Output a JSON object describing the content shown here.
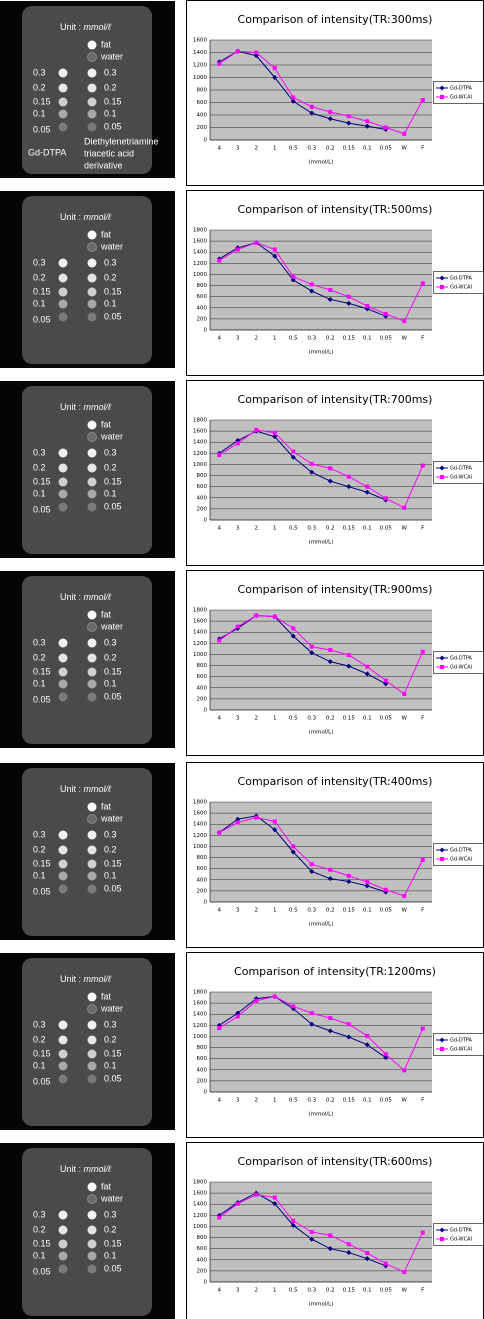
{
  "phantom": {
    "unit_label": "Unit :",
    "unit": "mmol/ℓ",
    "fat": "fat",
    "water": "water",
    "left": [
      "0.3",
      "0.2",
      "0.15",
      "0.1",
      "0.05"
    ],
    "right": [
      "0.3",
      "0.2",
      "0.15",
      "0.1",
      "0.05"
    ],
    "caption_left": "Gd-DTPA",
    "caption_right": [
      "Diethylenetriamine",
      "triacetic acid",
      "derivative"
    ]
  },
  "chart_data": [
    {
      "type": "line",
      "title": "Comparison of intensity(TR:300ms)",
      "x_label": "(mmol/L)",
      "categories": [
        "4",
        "3",
        "2",
        "1",
        "0.5",
        "0.3",
        "0.2",
        "0.15",
        "0.1",
        "0.05",
        "W",
        "F"
      ],
      "series": [
        {
          "name": "Gd-DTPA",
          "color": "#000080",
          "values": [
            1250,
            1420,
            1350,
            1000,
            620,
            430,
            340,
            270,
            220,
            170,
            null,
            null
          ]
        },
        {
          "name": "Gd-WCAI",
          "color": "#ff00ff",
          "values": [
            1220,
            1420,
            1400,
            1150,
            680,
            530,
            450,
            380,
            300,
            200,
            100,
            640
          ]
        }
      ],
      "ylim": [
        0,
        1600
      ],
      "yticks": [
        0,
        200,
        400,
        600,
        800,
        1000,
        1200,
        1400,
        1600
      ],
      "grid": true,
      "legend": "right"
    },
    {
      "type": "line",
      "title": "Comparison of intensity(TR:500ms)",
      "x_label": "(mmol/L)",
      "categories": [
        "4",
        "3",
        "2",
        "1",
        "0.5",
        "0.3",
        "0.2",
        "0.15",
        "0.1",
        "0.05",
        "W",
        "F"
      ],
      "series": [
        {
          "name": "Gd-DTPA",
          "color": "#000080",
          "values": [
            1280,
            1480,
            1570,
            1330,
            900,
            700,
            550,
            480,
            380,
            250,
            null,
            null
          ]
        },
        {
          "name": "Gd-WCAI",
          "color": "#ff00ff",
          "values": [
            1250,
            1450,
            1570,
            1450,
            960,
            820,
            720,
            600,
            430,
            290,
            160,
            840
          ]
        }
      ],
      "ylim": [
        0,
        1800
      ],
      "yticks": [
        0,
        200,
        400,
        600,
        800,
        1000,
        1200,
        1400,
        1600,
        1800
      ],
      "grid": true,
      "legend": "right"
    },
    {
      "type": "line",
      "title": "Comparison of intensity(TR:700ms)",
      "x_label": "(mmol/L)",
      "categories": [
        "4",
        "3",
        "2",
        "1",
        "0.5",
        "0.3",
        "0.2",
        "0.15",
        "0.1",
        "0.05",
        "W",
        "F"
      ],
      "series": [
        {
          "name": "Gd-DTPA",
          "color": "#000080",
          "values": [
            1200,
            1430,
            1600,
            1500,
            1130,
            860,
            700,
            600,
            500,
            360,
            null,
            null
          ]
        },
        {
          "name": "Gd-WCAI",
          "color": "#ff00ff",
          "values": [
            1170,
            1380,
            1620,
            1570,
            1230,
            1010,
            930,
            780,
            600,
            390,
            220,
            980
          ]
        }
      ],
      "ylim": [
        0,
        1800
      ],
      "yticks": [
        0,
        200,
        400,
        600,
        800,
        1000,
        1200,
        1400,
        1600,
        1800
      ],
      "grid": true,
      "legend": "right"
    },
    {
      "type": "line",
      "title": "Comparison of intensity(TR:900ms)",
      "x_label": "(mmol/L)",
      "categories": [
        "4",
        "3",
        "2",
        "1",
        "0.5",
        "0.3",
        "0.2",
        "0.15",
        "0.1",
        "0.05",
        "W",
        "F"
      ],
      "series": [
        {
          "name": "Gd-DTPA",
          "color": "#000080",
          "values": [
            1280,
            1470,
            1700,
            1680,
            1330,
            1030,
            870,
            790,
            650,
            470,
            null,
            null
          ]
        },
        {
          "name": "Gd-WCAI",
          "color": "#ff00ff",
          "values": [
            1250,
            1500,
            1700,
            1680,
            1470,
            1140,
            1080,
            990,
            780,
            530,
            290,
            1050
          ]
        }
      ],
      "ylim": [
        0,
        1800
      ],
      "yticks": [
        0,
        200,
        400,
        600,
        800,
        1000,
        1200,
        1400,
        1600,
        1800
      ],
      "grid": true,
      "legend": "right"
    },
    {
      "type": "line",
      "title": "Comparison of intensity(TR:400ms)",
      "x_label": "(mmol/L)",
      "categories": [
        "4",
        "3",
        "2",
        "1",
        "0.5",
        "0.3",
        "0.2",
        "0.15",
        "0.1",
        "0.05",
        "W",
        "F"
      ],
      "series": [
        {
          "name": "Gd-DTPA",
          "color": "#000080",
          "values": [
            1250,
            1490,
            1550,
            1300,
            900,
            550,
            420,
            370,
            290,
            180,
            null,
            null
          ]
        },
        {
          "name": "Gd-WCAI",
          "color": "#ff00ff",
          "values": [
            1250,
            1430,
            1520,
            1450,
            1000,
            680,
            580,
            470,
            360,
            220,
            110,
            760
          ]
        }
      ],
      "ylim": [
        0,
        1800
      ],
      "yticks": [
        0,
        200,
        400,
        600,
        800,
        1000,
        1200,
        1400,
        1600,
        1800
      ],
      "grid": true,
      "legend": "right"
    },
    {
      "type": "line",
      "title": "Comparison of intensity(TR:1200ms)",
      "x_label": "(mmol/L)",
      "categories": [
        "4",
        "3",
        "2",
        "1",
        "0.5",
        "0.3",
        "0.2",
        "0.15",
        "0.1",
        "0.05",
        "W",
        "F"
      ],
      "series": [
        {
          "name": "Gd-DTPA",
          "color": "#000080",
          "values": [
            1200,
            1420,
            1680,
            1720,
            1500,
            1220,
            1100,
            990,
            850,
            620,
            null,
            null
          ]
        },
        {
          "name": "Gd-WCAI",
          "color": "#ff00ff",
          "values": [
            1150,
            1360,
            1640,
            1720,
            1540,
            1420,
            1330,
            1220,
            1010,
            680,
            390,
            1140
          ]
        }
      ],
      "ylim": [
        0,
        1800
      ],
      "yticks": [
        0,
        200,
        400,
        600,
        800,
        1000,
        1200,
        1400,
        1600,
        1800
      ],
      "grid": true,
      "legend": "right"
    },
    {
      "type": "line",
      "title": "Comparison of intensity(TR:600ms)",
      "x_label": "(mmol/L)",
      "categories": [
        "4",
        "3",
        "2",
        "1",
        "0.5",
        "0.3",
        "0.2",
        "0.15",
        "0.1",
        "0.05",
        "W",
        "F"
      ],
      "series": [
        {
          "name": "Gd-DTPA",
          "color": "#000080",
          "values": [
            1200,
            1430,
            1600,
            1410,
            1020,
            770,
            600,
            530,
            420,
            290,
            null,
            null
          ]
        },
        {
          "name": "Gd-WCAI",
          "color": "#ff00ff",
          "values": [
            1160,
            1410,
            1570,
            1520,
            1100,
            900,
            840,
            680,
            520,
            330,
            180,
            890
          ]
        }
      ],
      "ylim": [
        0,
        1800
      ],
      "yticks": [
        0,
        200,
        400,
        600,
        800,
        1000,
        1200,
        1400,
        1600,
        1800
      ],
      "grid": true,
      "legend": "right"
    }
  ]
}
